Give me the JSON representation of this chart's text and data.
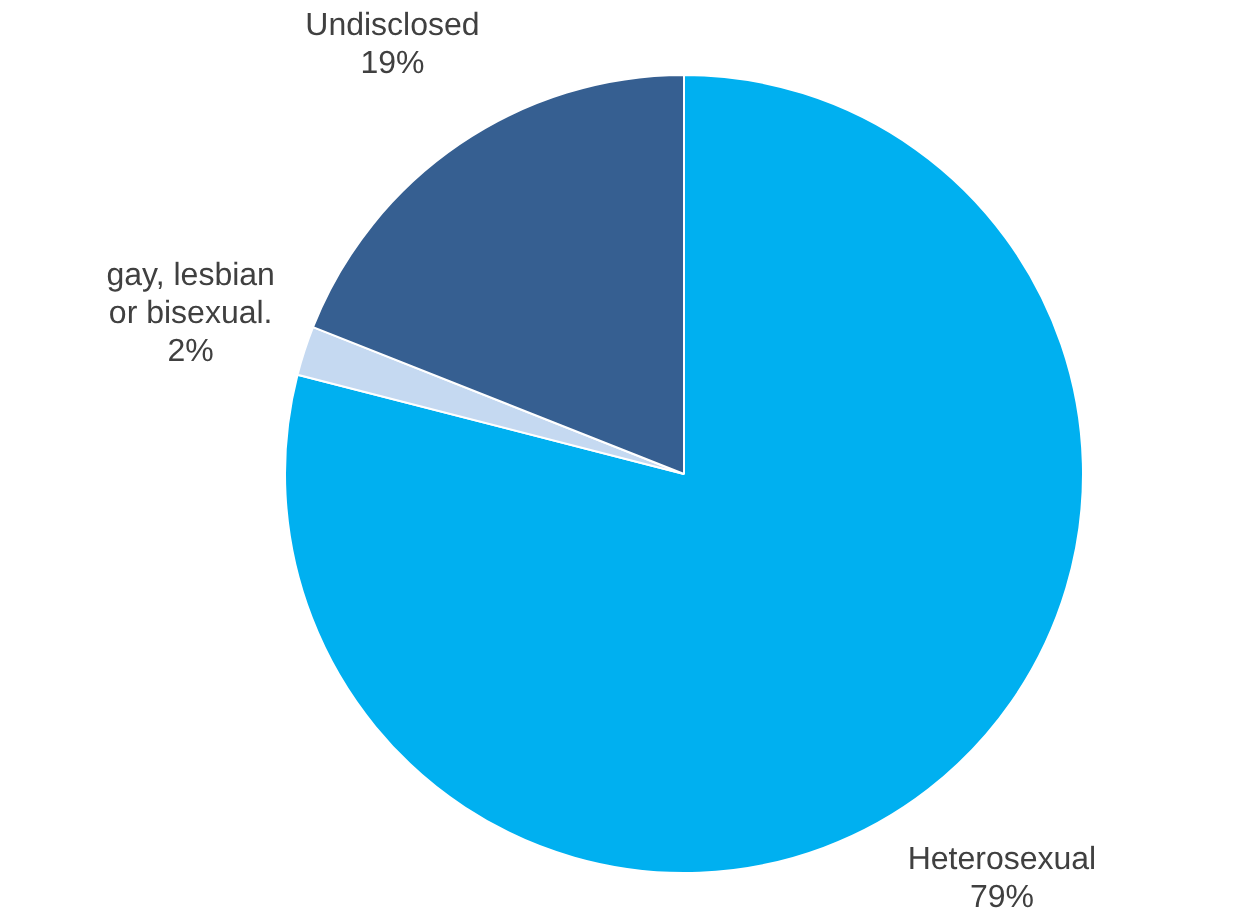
{
  "chart_data": {
    "type": "pie",
    "categories": [
      "Heterosexual",
      "gay, lesbian or bisexual.",
      "Undisclosed"
    ],
    "values": [
      79,
      2,
      19
    ],
    "colors": [
      "#00b0f0",
      "#c5d9f1",
      "#365f91"
    ],
    "value_labels": [
      "79%",
      "2%",
      "19%"
    ],
    "legend": false
  }
}
